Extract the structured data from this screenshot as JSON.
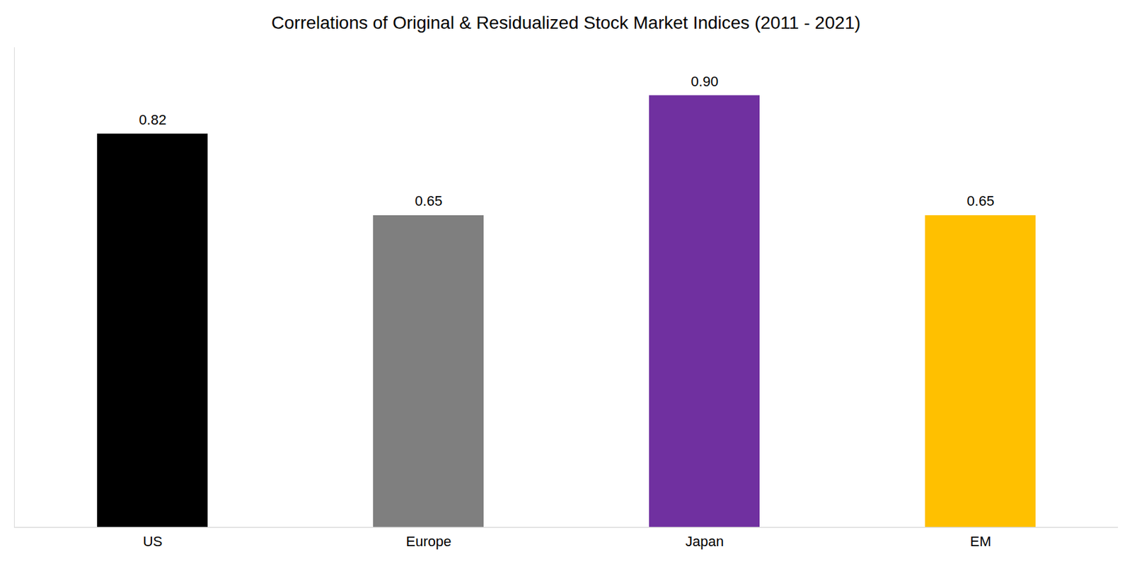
{
  "chart_data": {
    "type": "bar",
    "title": "Correlations of Original & Residualized Stock Market Indices (2011 - 2021)",
    "categories": [
      "US",
      "Europe",
      "Japan",
      "EM"
    ],
    "values": [
      0.82,
      0.65,
      0.9,
      0.65
    ],
    "value_labels": [
      "0.82",
      "0.65",
      "0.90",
      "0.65"
    ],
    "colors": [
      "#000000",
      "#7f7f7f",
      "#7030a0",
      "#ffc000"
    ],
    "ylim": [
      0,
      1
    ],
    "grid": false,
    "data_labels": true,
    "tick_labels": "x"
  }
}
